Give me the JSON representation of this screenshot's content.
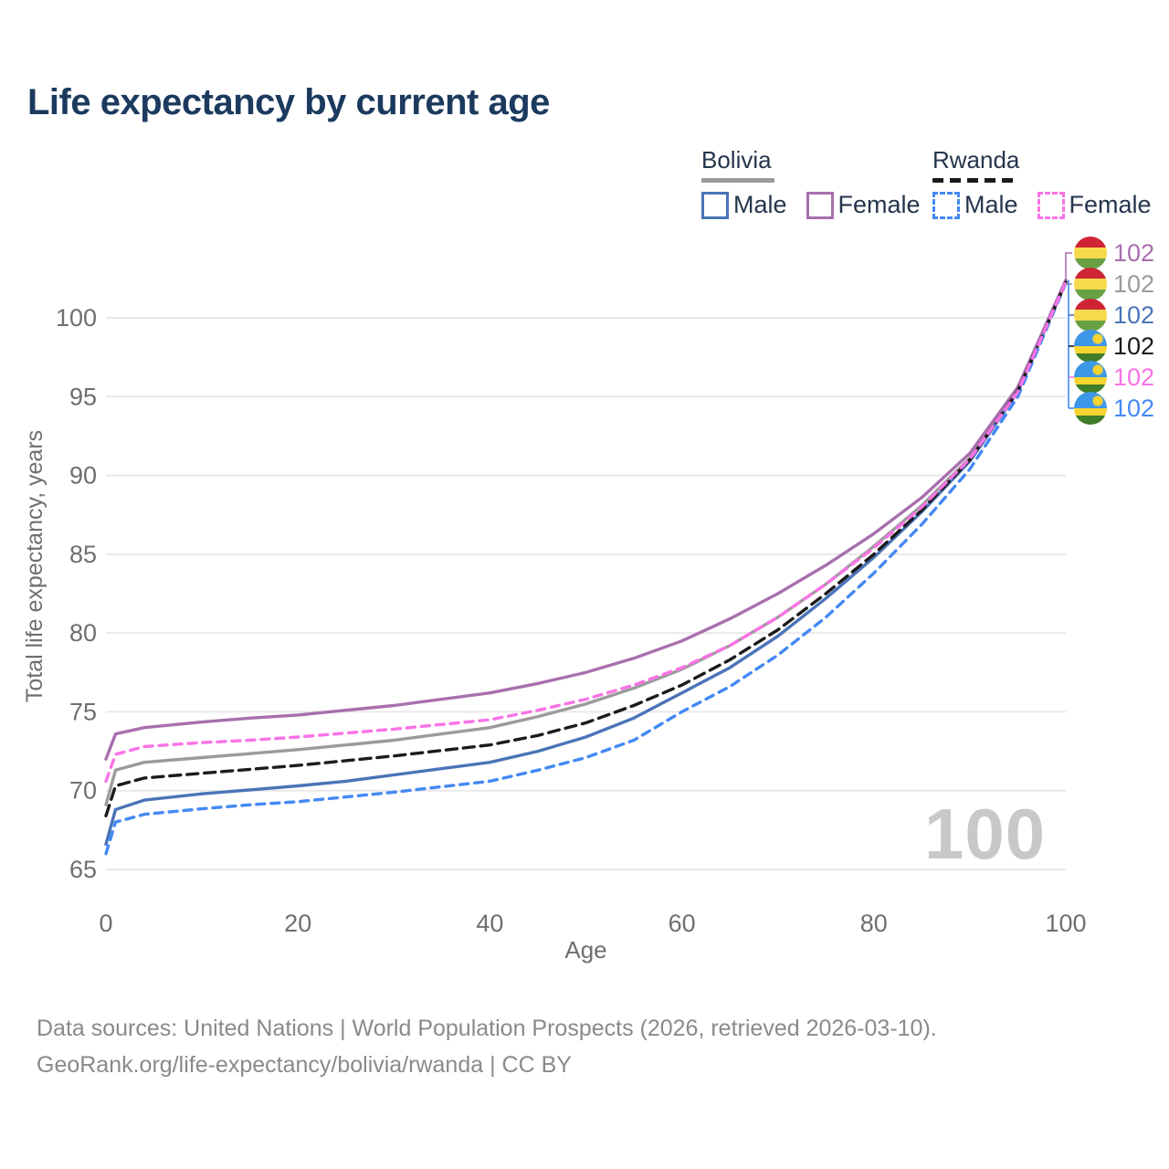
{
  "title": "Life expectancy by current age",
  "watermark": "100",
  "legend": {
    "groups": [
      {
        "name": "Bolivia",
        "line_style": "solid",
        "underline_color": "#9a9a9a",
        "items": [
          {
            "label": "Male",
            "color": "#4a74b8",
            "dashed": false
          },
          {
            "label": "Female",
            "color": "#a86fae",
            "dashed": false
          }
        ]
      },
      {
        "name": "Rwanda",
        "line_style": "dashed",
        "underline_color": "#1b1b1b",
        "items": [
          {
            "label": "Male",
            "color": "#4489f4",
            "dashed": true
          },
          {
            "label": "Female",
            "color": "#f973e6",
            "dashed": true
          }
        ]
      }
    ]
  },
  "right_labels": [
    {
      "series": "Bolivia Female",
      "flag": "bolivia",
      "value": "102",
      "color": "#a86fae"
    },
    {
      "series": "Bolivia",
      "flag": "bolivia",
      "value": "102",
      "color": "#9b9b9b"
    },
    {
      "series": "Bolivia Male",
      "flag": "bolivia",
      "value": "102",
      "color": "#4a74b8"
    },
    {
      "series": "Rwanda",
      "flag": "rwanda",
      "value": "102",
      "color": "#1b1b1b"
    },
    {
      "series": "Rwanda Female",
      "flag": "rwanda",
      "value": "102",
      "color": "#f973e6"
    },
    {
      "series": "Rwanda Male",
      "flag": "rwanda",
      "value": "102",
      "color": "#4489f4"
    }
  ],
  "footer": {
    "line1": "Data sources: United Nations | World Population Prospects (2026, retrieved 2026-03-10).",
    "line2": "GeoRank.org/life-expectancy/bolivia/rwanda | CC BY"
  },
  "chart_data": {
    "type": "line",
    "title": "Life expectancy by current age",
    "xlabel": "Age",
    "ylabel": "Total life expectancy, years",
    "x_ticks": [
      0,
      20,
      40,
      60,
      80,
      100
    ],
    "y_ticks": [
      65,
      70,
      75,
      80,
      85,
      90,
      95,
      100
    ],
    "xlim": [
      0,
      100
    ],
    "ylim": [
      64,
      103.5
    ],
    "grid": "horizontal",
    "legend_position": "top-right",
    "x": [
      0,
      1,
      4,
      10,
      15,
      20,
      25,
      30,
      35,
      40,
      45,
      50,
      55,
      60,
      65,
      70,
      75,
      80,
      85,
      90,
      95,
      100
    ],
    "series": [
      {
        "name": "Bolivia Female",
        "color": "#a86fae",
        "dash": null,
        "values": [
          72.0,
          73.6,
          74.0,
          74.35,
          74.6,
          74.8,
          75.1,
          75.4,
          75.8,
          76.2,
          76.8,
          77.5,
          78.4,
          79.5,
          80.9,
          82.5,
          84.3,
          86.3,
          88.6,
          91.4,
          95.6,
          102.4
        ]
      },
      {
        "name": "Bolivia",
        "color": "#9b9b9b",
        "dash": null,
        "values": [
          69.1,
          71.3,
          71.8,
          72.1,
          72.35,
          72.6,
          72.9,
          73.2,
          73.6,
          74.0,
          74.7,
          75.5,
          76.5,
          77.7,
          79.2,
          81.0,
          83.1,
          85.5,
          88.1,
          91.1,
          95.4,
          102.35
        ]
      },
      {
        "name": "Bolivia Male",
        "color": "#4a74b8",
        "dash": null,
        "values": [
          66.6,
          68.8,
          69.4,
          69.8,
          70.05,
          70.3,
          70.6,
          71.0,
          71.4,
          71.8,
          72.5,
          73.4,
          74.6,
          76.2,
          77.8,
          79.8,
          82.2,
          84.8,
          87.7,
          90.9,
          95.3,
          102.3
        ]
      },
      {
        "name": "Rwanda",
        "color": "#1b1b1b",
        "dash": [
          12,
          7
        ],
        "values": [
          68.4,
          70.3,
          70.8,
          71.1,
          71.35,
          71.6,
          71.9,
          72.2,
          72.55,
          72.9,
          73.5,
          74.3,
          75.4,
          76.7,
          78.3,
          80.2,
          82.5,
          85.0,
          87.8,
          91.0,
          95.35,
          102.25
        ]
      },
      {
        "name": "Rwanda Female",
        "color": "#f973e6",
        "dash": [
          9,
          7
        ],
        "values": [
          70.6,
          72.3,
          72.8,
          73.05,
          73.2,
          73.4,
          73.65,
          73.9,
          74.2,
          74.5,
          75.1,
          75.8,
          76.7,
          77.8,
          79.2,
          81.0,
          83.1,
          85.4,
          88.0,
          91.05,
          95.3,
          102.28
        ]
      },
      {
        "name": "Rwanda Male",
        "color": "#4489f4",
        "dash": [
          9,
          7
        ],
        "values": [
          66.0,
          68.0,
          68.5,
          68.85,
          69.1,
          69.3,
          69.6,
          69.9,
          70.25,
          70.6,
          71.3,
          72.1,
          73.2,
          75.0,
          76.6,
          78.6,
          81.0,
          83.8,
          86.9,
          90.4,
          95.0,
          102.2
        ]
      }
    ]
  }
}
